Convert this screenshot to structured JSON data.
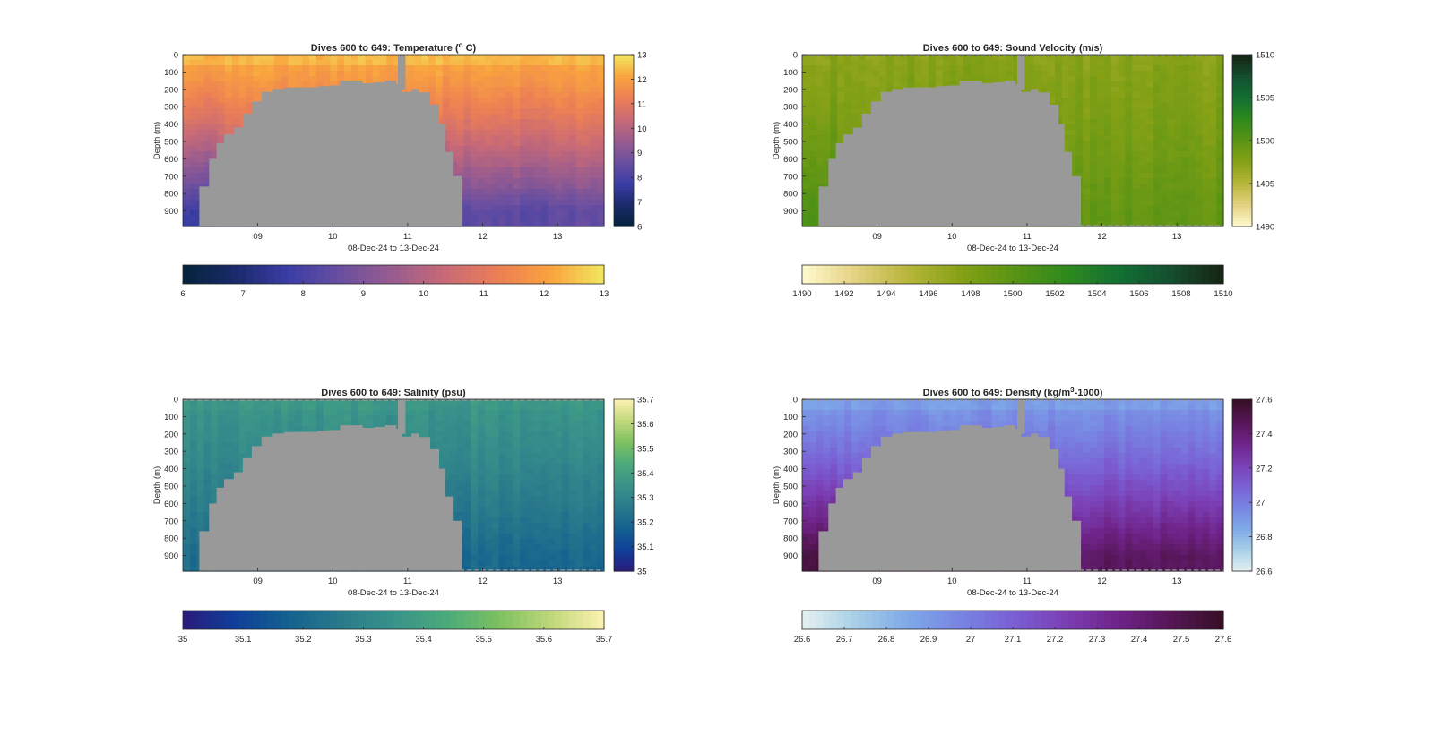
{
  "figure": {
    "panels": [
      {
        "id": "temperature",
        "title_parts": [
          "Dives 600 to 649: Temperature (",
          "o",
          " C)"
        ],
        "title_sup_index": 1,
        "colormap": "thermal",
        "range": [
          6,
          13
        ],
        "side_ticks": [
          "6",
          "7",
          "8",
          "9",
          "10",
          "11",
          "12",
          "13"
        ],
        "bottom_ticks": [
          "6",
          "7",
          "8",
          "9",
          "10",
          "11",
          "12",
          "13"
        ],
        "surface_value": 12.2,
        "deep_value": 8.4,
        "left_deep_value": 7.8,
        "edge_line": false
      },
      {
        "id": "sound_velocity",
        "title_parts": [
          "Dives 600 to 649: Sound Velocity (m/s)"
        ],
        "title_sup_index": -1,
        "colormap": "speed",
        "range": [
          1490,
          1510
        ],
        "side_ticks": [
          "1490",
          "1495",
          "1500",
          "1505",
          "1510"
        ],
        "bottom_ticks": [
          "1490",
          "1492",
          "1494",
          "1496",
          "1498",
          "1500",
          "1502",
          "1504",
          "1506",
          "1508",
          "1510"
        ],
        "surface_value": 1497.5,
        "deep_value": 1499.5,
        "left_deep_value": 1501,
        "edge_line": true
      },
      {
        "id": "salinity",
        "title_parts": [
          "Dives 600 to 649: Salinity (psu)"
        ],
        "title_sup_index": -1,
        "colormap": "haline",
        "range": [
          35,
          35.7
        ],
        "side_ticks": [
          "35",
          "35.1",
          "35.2",
          "35.3",
          "35.4",
          "35.5",
          "35.6",
          "35.7"
        ],
        "bottom_ticks": [
          "35",
          "35.1",
          "35.2",
          "35.3",
          "35.4",
          "35.5",
          "35.6",
          "35.7"
        ],
        "surface_value": 35.36,
        "deep_value": 35.2,
        "left_deep_value": 35.22,
        "edge_line": true
      },
      {
        "id": "density",
        "title_parts": [
          "Dives 600 to 649: Density (kg/m",
          "3",
          "-1000)"
        ],
        "title_sup_index": 1,
        "colormap": "dense",
        "range": [
          26.6,
          27.6
        ],
        "side_ticks": [
          "26.6",
          "26.8",
          "27",
          "27.2",
          "27.4",
          "27.6"
        ],
        "bottom_ticks": [
          "26.6",
          "26.7",
          "26.8",
          "26.9",
          "27",
          "27.1",
          "27.2",
          "27.3",
          "27.4",
          "27.5",
          "27.6"
        ],
        "surface_value": 26.92,
        "deep_value": 27.45,
        "left_deep_value": 27.55,
        "edge_line": true
      }
    ]
  },
  "chart_data": {
    "type": "heatmap",
    "ylabel": "Depth (m)",
    "xlabel": "08-Dec-24 to 13-Dec-24",
    "ylim": [
      0,
      990
    ],
    "xlim": [
      8.0,
      13.62
    ],
    "y_ticks": [
      "0",
      "100",
      "200",
      "300",
      "400",
      "500",
      "600",
      "700",
      "800",
      "900"
    ],
    "x_ticks": [
      "09",
      "10",
      "11",
      "12",
      "13"
    ],
    "x_tick_values": [
      9,
      10,
      11,
      12,
      13
    ],
    "no_data_color": "#999999",
    "no_data_region": {
      "x": [
        8.22,
        8.35,
        8.45,
        8.55,
        8.68,
        8.8,
        8.92,
        9.05,
        9.2,
        9.35,
        9.5,
        9.65,
        9.8,
        9.95,
        10.1,
        10.25,
        10.4,
        10.55,
        10.7,
        10.85,
        10.92,
        11.05,
        11.15,
        11.3,
        11.42,
        11.5,
        11.6
      ],
      "top_depth": [
        760,
        600,
        510,
        460,
        420,
        340,
        270,
        215,
        198,
        190,
        188,
        188,
        182,
        178,
        150,
        150,
        165,
        160,
        150,
        170,
        215,
        198,
        218,
        288,
        400,
        560,
        700
      ]
    },
    "no_data_spike": {
      "x_start": 10.87,
      "x_end": 10.97
    }
  }
}
